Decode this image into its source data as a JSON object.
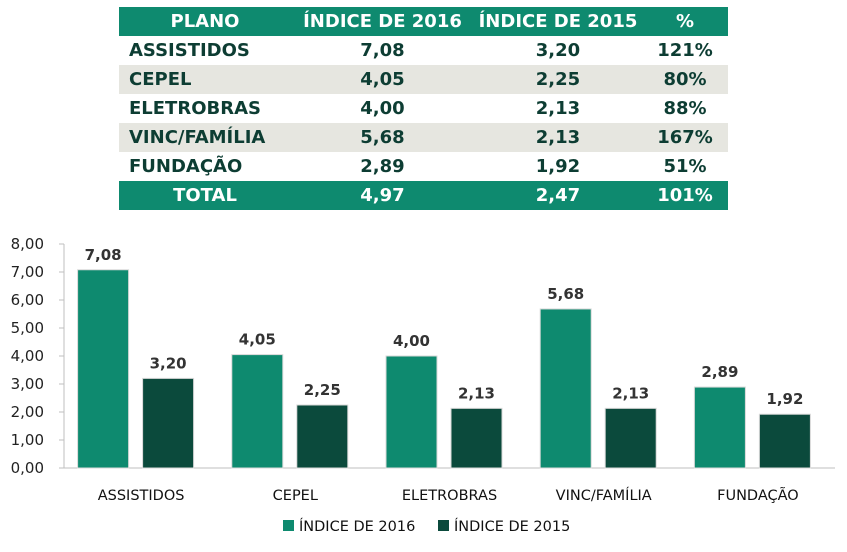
{
  "table": {
    "headers": [
      "PLANO",
      "ÍNDICE DE 2016",
      "ÍNDICE DE 2015",
      "%"
    ],
    "rows": [
      {
        "plano": "ASSISTIDOS",
        "i2016": "7,08",
        "i2015": "3,20",
        "pct": "121%"
      },
      {
        "plano": "CEPEL",
        "i2016": "4,05",
        "i2015": "2,25",
        "pct": "80%"
      },
      {
        "plano": "ELETROBRAS",
        "i2016": "4,00",
        "i2015": "2,13",
        "pct": "88%"
      },
      {
        "plano": "VINC/FAMÍLIA",
        "i2016": "5,68",
        "i2015": "2,13",
        "pct": "167%"
      },
      {
        "plano": "FUNDAÇÃO",
        "i2016": "2,89",
        "i2015": "1,92",
        "pct": "51%"
      }
    ],
    "total": {
      "plano": "TOTAL",
      "i2016": "4,97",
      "i2015": "2,47",
      "pct": "101%"
    }
  },
  "chart_data": {
    "type": "bar",
    "categories": [
      "ASSISTIDOS",
      "CEPEL",
      "ELETROBRAS",
      "VINC/FAMÍLIA",
      "FUNDAÇÃO"
    ],
    "series": [
      {
        "name": "ÍNDICE DE 2016",
        "values": [
          7.08,
          4.05,
          4.0,
          5.68,
          2.89
        ],
        "color": "#0e8a6f"
      },
      {
        "name": "ÍNDICE DE 2015",
        "values": [
          3.2,
          2.25,
          2.13,
          2.13,
          1.92
        ],
        "color": "#0b4a3c"
      }
    ],
    "data_labels": [
      [
        "7,08",
        "4,05",
        "4,00",
        "5,68",
        "2,89"
      ],
      [
        "3,20",
        "2,25",
        "2,13",
        "2,13",
        "1,92"
      ]
    ],
    "y_tick_labels": [
      "0,00",
      "1,00",
      "2,00",
      "3,00",
      "4,00",
      "5,00",
      "6,00",
      "7,00",
      "8,00"
    ],
    "ylim": [
      0,
      8
    ],
    "grid": false,
    "legend_position": "bottom"
  }
}
